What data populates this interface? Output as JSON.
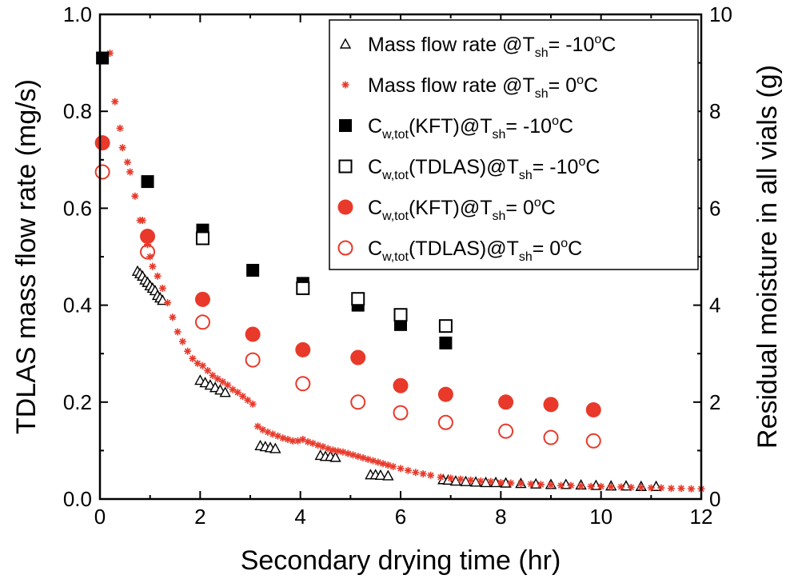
{
  "chart_data": {
    "type": "scatter",
    "xlabel": "Secondary drying time (hr)",
    "ylabel": "TDLAS mass flow rate (mg/s)",
    "y2label": "Residual moisture in all vials (g)",
    "xlim": [
      0,
      12
    ],
    "ylim": [
      0,
      1.0
    ],
    "y2lim": [
      0,
      10
    ],
    "x_ticks": [
      "0",
      "2",
      "4",
      "6",
      "8",
      "10",
      "12"
    ],
    "y_ticks": [
      "0.0",
      "0.2",
      "0.4",
      "0.6",
      "0.8",
      "1.0"
    ],
    "y2_ticks": [
      "0",
      "2",
      "4",
      "6",
      "8",
      "10"
    ],
    "grid": false,
    "legend_position": "top-right",
    "series": [
      {
        "name": "Mass flow rate @T_sh = -10oC",
        "legend": {
          "main": "Mass flow rate @T",
          "sub": "sh",
          "tail": "= -10",
          "sup": "o",
          "end": "C"
        },
        "axis": "left",
        "marker": "open-triangle",
        "color": "#000000",
        "x": [
          0.75,
          0.8,
          0.85,
          0.9,
          0.95,
          1.0,
          1.05,
          1.1,
          1.15,
          1.2,
          1.25,
          2.0,
          2.1,
          2.2,
          2.3,
          2.4,
          2.5,
          3.2,
          3.3,
          3.4,
          3.5,
          4.4,
          4.5,
          4.6,
          4.7,
          5.4,
          5.5,
          5.6,
          5.75,
          6.85,
          6.95,
          7.1,
          7.3,
          7.5,
          7.7,
          7.9,
          8.1,
          8.4,
          8.7,
          9.0,
          9.3,
          9.6,
          9.9,
          10.2,
          10.5,
          10.8,
          11.1
        ],
        "values": [
          0.47,
          0.465,
          0.46,
          0.452,
          0.447,
          0.44,
          0.435,
          0.43,
          0.42,
          0.415,
          0.41,
          0.245,
          0.24,
          0.235,
          0.23,
          0.225,
          0.22,
          0.11,
          0.108,
          0.106,
          0.104,
          0.09,
          0.088,
          0.088,
          0.086,
          0.05,
          0.05,
          0.049,
          0.048,
          0.04,
          0.039,
          0.037,
          0.036,
          0.035,
          0.034,
          0.034,
          0.033,
          0.032,
          0.031,
          0.03,
          0.03,
          0.029,
          0.028,
          0.027,
          0.027,
          0.026,
          0.026
        ]
      },
      {
        "name": "Mass flow rate @T_sh = 0oC",
        "legend": {
          "main": "Mass flow rate @T",
          "sub": "sh",
          "tail": "= 0",
          "sup": "o",
          "end": "C"
        },
        "axis": "left",
        "marker": "asterisk",
        "color": "#e8392a",
        "x": [
          0.2,
          0.3,
          0.4,
          0.45,
          0.55,
          0.6,
          0.7,
          0.8,
          0.85,
          0.95,
          1.0,
          1.05,
          1.15,
          1.25,
          1.35,
          1.45,
          1.55,
          1.65,
          1.75,
          1.85,
          1.95,
          2.05,
          2.15,
          2.25,
          2.35,
          2.45,
          2.55,
          2.65,
          2.75,
          2.85,
          2.95,
          3.05,
          3.15,
          3.25,
          3.35,
          3.45,
          3.55,
          3.65,
          3.75,
          3.85,
          3.95,
          4.05,
          4.15,
          4.25,
          4.35,
          4.45,
          4.55,
          4.65,
          4.75,
          4.85,
          4.95,
          5.05,
          5.15,
          5.25,
          5.35,
          5.45,
          5.55,
          5.65,
          5.75,
          5.85,
          6.0,
          6.15,
          6.3,
          6.45,
          6.6,
          6.8,
          7.0,
          7.2,
          7.4,
          7.6,
          7.8,
          8.0,
          8.2,
          8.4,
          8.6,
          8.8,
          9.0,
          9.2,
          9.4,
          9.6,
          9.8,
          10.0,
          10.2,
          10.4,
          10.6,
          10.8,
          11.0,
          11.2,
          11.4,
          11.6,
          11.8,
          12.0
        ],
        "values": [
          0.92,
          0.82,
          0.765,
          0.725,
          0.695,
          0.675,
          0.625,
          0.575,
          0.575,
          0.525,
          0.5,
          0.48,
          0.46,
          0.435,
          0.405,
          0.375,
          0.345,
          0.325,
          0.305,
          0.29,
          0.28,
          0.275,
          0.265,
          0.255,
          0.248,
          0.242,
          0.235,
          0.226,
          0.22,
          0.212,
          0.204,
          0.196,
          0.15,
          0.143,
          0.138,
          0.134,
          0.13,
          0.126,
          0.123,
          0.12,
          0.12,
          0.123,
          0.118,
          0.115,
          0.111,
          0.108,
          0.104,
          0.101,
          0.099,
          0.097,
          0.094,
          0.091,
          0.088,
          0.085,
          0.082,
          0.079,
          0.076,
          0.073,
          0.07,
          0.067,
          0.063,
          0.059,
          0.055,
          0.052,
          0.049,
          0.045,
          0.043,
          0.041,
          0.039,
          0.037,
          0.036,
          0.034,
          0.033,
          0.032,
          0.031,
          0.03,
          0.029,
          0.028,
          0.028,
          0.027,
          0.026,
          0.026,
          0.025,
          0.025,
          0.024,
          0.024,
          0.023,
          0.023,
          0.022,
          0.022,
          0.021,
          0.021
        ]
      },
      {
        "name": "Cw,tot(KFT)@T_sh = -10oC",
        "legend": {
          "main": "C",
          "sub1": "w,tot",
          "mid": "(KFT)@T",
          "sub": "sh",
          "tail": "= -10",
          "sup": "o",
          "end": "C"
        },
        "axis": "right",
        "marker": "filled-square",
        "color": "#000000",
        "x": [
          0.05,
          0.95,
          2.05,
          3.05,
          4.05,
          5.15,
          6.0,
          6.9
        ],
        "values": [
          9.1,
          6.55,
          5.55,
          4.72,
          4.45,
          4.0,
          3.6,
          3.22
        ]
      },
      {
        "name": "Cw,tot(TDLAS)@T_sh = -10oC",
        "legend": {
          "main": "C",
          "sub1": "w,tot",
          "mid": "(TDLAS)@T",
          "sub": "sh",
          "tail": "= -10",
          "sup": "o",
          "end": "C"
        },
        "axis": "right",
        "marker": "open-square",
        "color": "#000000",
        "x": [
          2.05,
          4.05,
          5.15,
          6.0,
          6.9
        ],
        "values": [
          5.38,
          4.35,
          4.13,
          3.8,
          3.57
        ]
      },
      {
        "name": "Cw,tot(KFT)@T_sh = 0oC",
        "legend": {
          "main": "C",
          "sub1": "w,tot",
          "mid": "(KFT)@T",
          "sub": "sh",
          "tail": "= 0",
          "sup": "o",
          "end": "C"
        },
        "axis": "right",
        "marker": "filled-circle",
        "color": "#e8392a",
        "x": [
          0.05,
          0.95,
          2.05,
          3.05,
          4.05,
          5.15,
          6.0,
          6.9,
          8.1,
          9.0,
          9.85
        ],
        "values": [
          7.35,
          5.42,
          4.12,
          3.4,
          3.08,
          2.92,
          2.34,
          2.16,
          2.0,
          1.95,
          1.84
        ]
      },
      {
        "name": "Cw,tot(TDLAS)@T_sh = 0oC",
        "legend": {
          "main": "C",
          "sub1": "w,tot",
          "mid": "(TDLAS)@T",
          "sub": "sh",
          "tail": "= 0",
          "sup": "o",
          "end": "C"
        },
        "axis": "right",
        "marker": "open-circle",
        "color": "#e8392a",
        "x": [
          0.05,
          0.95,
          2.05,
          3.05,
          4.05,
          5.15,
          6.0,
          6.9,
          8.1,
          9.0,
          9.85
        ],
        "values": [
          6.75,
          5.1,
          3.65,
          2.87,
          2.38,
          2.0,
          1.78,
          1.58,
          1.4,
          1.27,
          1.2
        ]
      }
    ]
  }
}
